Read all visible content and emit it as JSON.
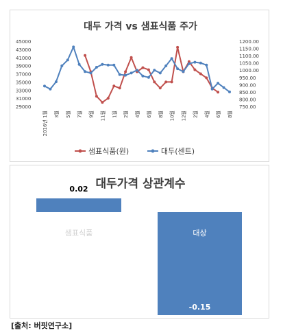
{
  "source": "[출처: 버핏연구소]",
  "chart_data": [
    {
      "type": "line",
      "title": "대두 가격 vs 샘표식품 주가",
      "x_tick_labels": [
        "2016년 1월",
        "3월",
        "5월",
        "7월",
        "9월",
        "11월",
        "1월",
        "2월",
        "4월",
        "6월",
        "8월",
        "10월",
        "12월",
        "2월",
        "4월",
        "6월",
        "8월"
      ],
      "series": [
        {
          "name": "샘표식품(원)",
          "axis": "left",
          "color": "#c0504d",
          "start_index": 7,
          "values": [
            41500,
            37500,
            31500,
            30000,
            31000,
            34000,
            33500,
            37500,
            41000,
            37500,
            38500,
            38000,
            35000,
            33500,
            35000,
            35000,
            43500,
            37500,
            40000,
            38000,
            37000,
            36000,
            33500,
            32500
          ]
        },
        {
          "name": "대두(센트)",
          "axis": "right",
          "color": "#4f81bd",
          "start_index": 0,
          "values": [
            890,
            870,
            920,
            1030,
            1070,
            1160,
            1040,
            990,
            980,
            1020,
            1040,
            1035,
            1035,
            970,
            965,
            980,
            1000,
            960,
            950,
            1000,
            980,
            1030,
            1080,
            1010,
            990,
            1045,
            1055,
            1050,
            1035,
            870,
            910,
            880,
            850
          ]
        }
      ],
      "y_left": {
        "min": 29000,
        "max": 45000,
        "step": 2000,
        "ticks": [
          "29000",
          "31000",
          "33000",
          "35000",
          "37000",
          "39000",
          "41000",
          "43000",
          "45000"
        ]
      },
      "y_right": {
        "min": 750,
        "max": 1200,
        "step": 50,
        "ticks": [
          "750.00",
          "800.00",
          "850.00",
          "900.00",
          "950.00",
          "1000.00",
          "1050.00",
          "1100.00",
          "1150.00",
          "1200.00"
        ]
      },
      "legend_position": "bottom",
      "grid": false
    },
    {
      "type": "bar",
      "title": "대두가격 상관계수",
      "categories": [
        "샘표식품",
        "대상"
      ],
      "values": [
        0.02,
        -0.15
      ],
      "value_labels": [
        "0.02",
        "-0.15"
      ],
      "color": "#4f81bd",
      "ylim": [
        -0.15,
        0.02
      ]
    }
  ]
}
